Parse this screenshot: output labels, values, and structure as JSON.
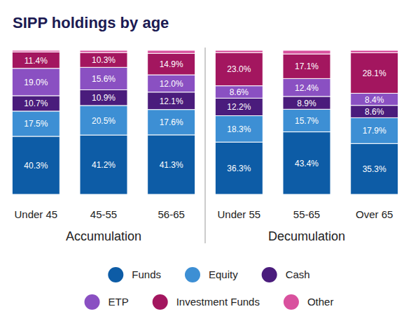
{
  "chart_data": {
    "type": "bar",
    "title": "SIPP holdings by age",
    "stacked": true,
    "data_labels": true,
    "tick_labels": "x",
    "legend": "bottom",
    "categories": [
      "Under 45",
      "45-55",
      "56-65",
      "Under 55",
      "55-65",
      "Over 65"
    ],
    "groups": [
      {
        "name": "Accumulation",
        "count": 3
      },
      {
        "name": "Decumulation",
        "count": 3
      }
    ],
    "ylim": [
      0,
      100
    ],
    "series": [
      {
        "name": "Funds",
        "color": "#0d5ca6",
        "values": [
          40.3,
          41.2,
          41.3,
          36.3,
          43.4,
          35.3
        ],
        "value_labels": [
          "40.3%",
          "41.2%",
          "41.3%",
          "36.3%",
          "43.4%",
          "35.3%"
        ]
      },
      {
        "name": "Equity",
        "color": "#3d8fd4",
        "values": [
          17.5,
          20.5,
          17.6,
          18.3,
          15.7,
          17.9
        ],
        "value_labels": [
          "17.5%",
          "20.5%",
          "17.6%",
          "18.3%",
          "15.7%",
          "17.9%"
        ]
      },
      {
        "name": "Cash",
        "color": "#4a1c7c",
        "values": [
          10.7,
          10.9,
          12.1,
          12.2,
          8.9,
          8.6
        ],
        "value_labels": [
          "10.7%",
          "10.9%",
          "12.1%",
          "12.2%",
          "8.9%",
          "8.6%"
        ]
      },
      {
        "name": "ETP",
        "color": "#8a50c2",
        "values": [
          19.0,
          15.6,
          12.0,
          8.6,
          12.4,
          8.4
        ],
        "value_labels": [
          "19.0%",
          "15.6%",
          "12.0%",
          "8.6%",
          "12.4%",
          "8.4%"
        ]
      },
      {
        "name": "Investment Funds",
        "color": "#a3165f",
        "values": [
          11.4,
          10.3,
          14.9,
          23.0,
          17.1,
          28.1
        ],
        "value_labels": [
          "11.4%",
          "10.3%",
          "14.9%",
          "23.0%",
          "17.1%",
          "28.1%"
        ]
      },
      {
        "name": "Other",
        "color": "#d9519e",
        "values": [
          1.1,
          1.5,
          2.1,
          1.6,
          2.5,
          1.7
        ],
        "value_labels": [
          null,
          null,
          null,
          null,
          null,
          null
        ]
      }
    ]
  }
}
